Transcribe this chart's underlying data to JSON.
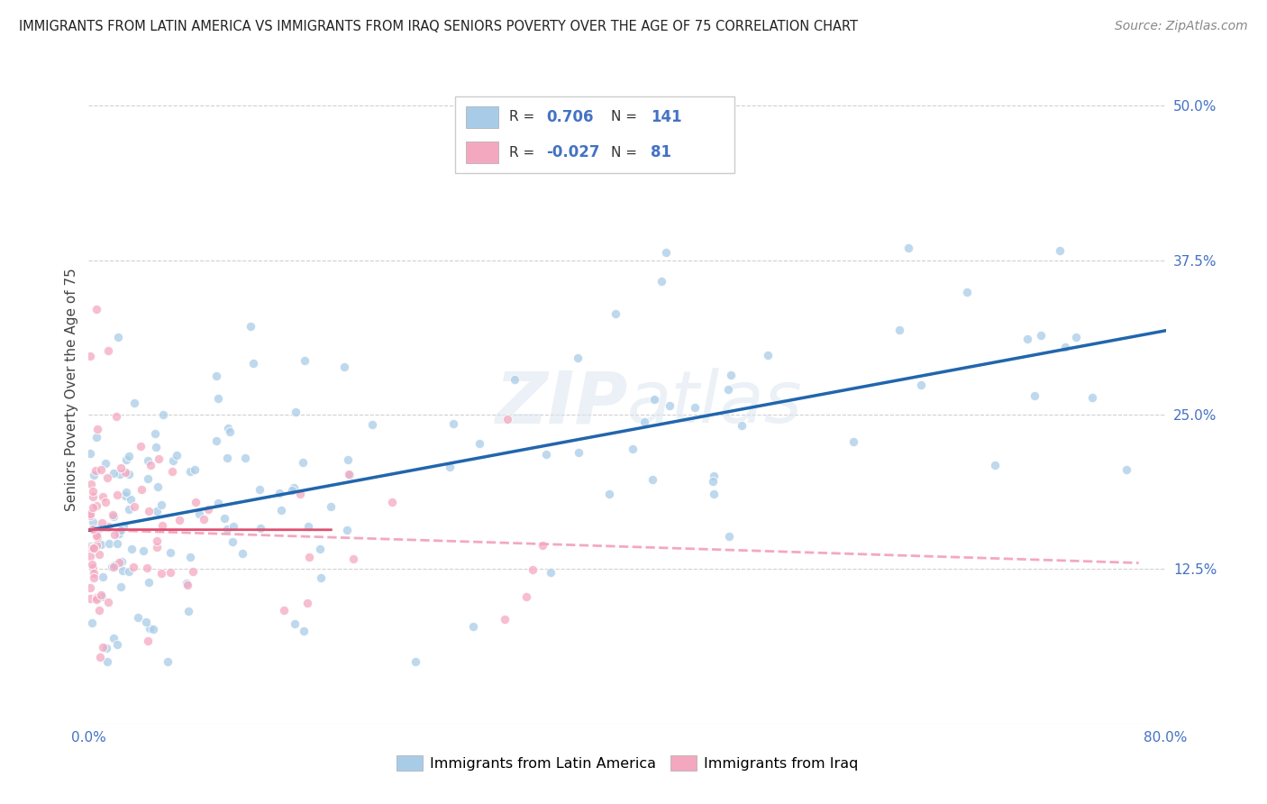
{
  "title": "IMMIGRANTS FROM LATIN AMERICA VS IMMIGRANTS FROM IRAQ SENIORS POVERTY OVER THE AGE OF 75 CORRELATION CHART",
  "source": "Source: ZipAtlas.com",
  "ylabel": "Seniors Poverty Over the Age of 75",
  "xlim": [
    0.0,
    0.8
  ],
  "ylim": [
    0.0,
    0.54
  ],
  "xticks": [
    0.0,
    0.1,
    0.2,
    0.3,
    0.4,
    0.5,
    0.6,
    0.7,
    0.8
  ],
  "xticklabels": [
    "0.0%",
    "",
    "",
    "",
    "",
    "",
    "",
    "",
    "80.0%"
  ],
  "ytick_positions": [
    0.125,
    0.25,
    0.375,
    0.5
  ],
  "yticklabels": [
    "12.5%",
    "25.0%",
    "37.5%",
    "50.0%"
  ],
  "watermark": "ZIPatlas",
  "legend_R1": "0.706",
  "legend_N1": "141",
  "legend_R2": "-0.027",
  "legend_N2": "81",
  "latin_color": "#a8cce8",
  "iraq_color": "#f4a8c0",
  "latin_line_color": "#2166ac",
  "iraq_line_color": "#d6604d",
  "iraq_line_dashed_color": "#f4a8c0",
  "background_color": "#ffffff",
  "grid_color": "#cccccc",
  "title_color": "#222222",
  "source_color": "#888888",
  "tick_color": "#4472c4",
  "ylabel_color": "#444444",
  "legend_text_color": "#333333",
  "legend_value_color": "#4472c4"
}
